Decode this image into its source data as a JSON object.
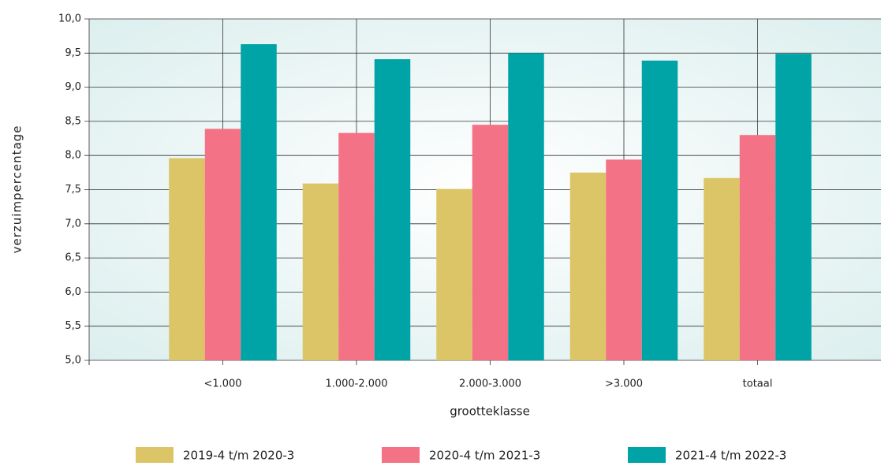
{
  "chart_data": {
    "type": "bar",
    "ylabel": "verzuimpercentage",
    "xlabel": "grootteklasse",
    "categories": [
      "<1.000",
      "1.000-2.000",
      "2.000-3.000",
      ">3.000",
      "totaal"
    ],
    "series": [
      {
        "name": "2019-4 t/m 2020-3",
        "color": "#dcc567",
        "values": [
          7.96,
          7.59,
          7.51,
          7.75,
          7.67
        ]
      },
      {
        "name": "2020-4 t/m 2021-3",
        "color": "#f47286",
        "values": [
          8.39,
          8.33,
          8.45,
          7.94,
          8.3
        ]
      },
      {
        "name": "2021-4 t/m 2022-3",
        "color": "#00a3a6",
        "values": [
          9.63,
          9.41,
          9.5,
          9.39,
          9.49
        ]
      }
    ],
    "ylim": [
      5,
      10
    ],
    "yticks": [
      {
        "value": 5,
        "label": "5,0"
      },
      {
        "value": 5.5,
        "label": "5,5"
      },
      {
        "value": 6,
        "label": "6,0"
      },
      {
        "value": 6.5,
        "label": "6,5"
      },
      {
        "value": 7,
        "label": "7,0"
      },
      {
        "value": 7.5,
        "label": "7,5"
      },
      {
        "value": 8,
        "label": "8,0"
      },
      {
        "value": 8.5,
        "label": "8,5"
      },
      {
        "value": 9,
        "label": "9,0"
      },
      {
        "value": 9.5,
        "label": "9,5"
      },
      {
        "value": 10,
        "label": "10,0"
      }
    ],
    "grid": true
  }
}
